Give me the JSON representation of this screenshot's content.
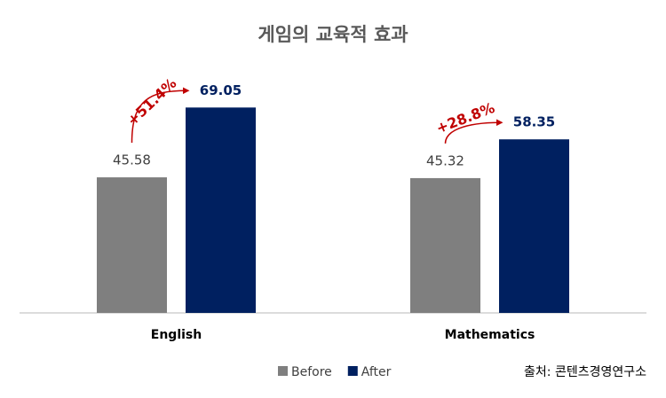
{
  "chart_data": {
    "type": "bar",
    "title": "게임의 교육적 효과",
    "categories": [
      "English",
      "Mathematics"
    ],
    "series": [
      {
        "name": "Before",
        "color": "#7f7f7f",
        "values": [
          45.58,
          45.32
        ]
      },
      {
        "name": "After",
        "color": "#002060",
        "values": [
          69.05,
          58.35
        ]
      }
    ],
    "ylim": [
      0,
      90
    ],
    "annotations": [
      {
        "text": "+51.4%",
        "color": "#c00000"
      },
      {
        "text": "+28.8%",
        "color": "#c00000"
      }
    ],
    "legend": "bottom",
    "source": "출처: 콘텐츠경영연구소"
  }
}
